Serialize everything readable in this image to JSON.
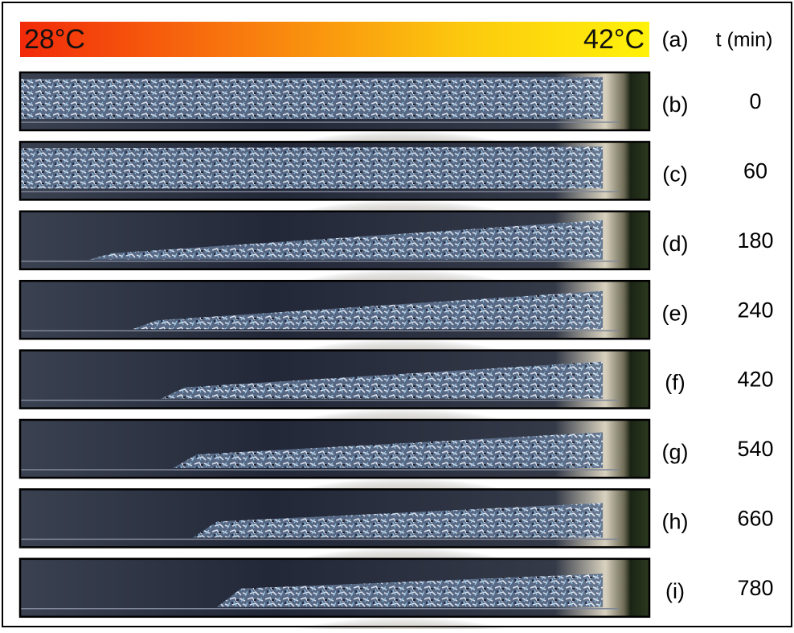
{
  "header": {
    "cold": "28°C",
    "hot": "42°C",
    "label": "(a)",
    "time_heading": "t (min)"
  },
  "panels": [
    {
      "label": "(b)",
      "time": 0
    },
    {
      "label": "(c)",
      "time": 60
    },
    {
      "label": "(d)",
      "time": 180
    },
    {
      "label": "(e)",
      "time": 240
    },
    {
      "label": "(f)",
      "time": 420
    },
    {
      "label": "(g)",
      "time": 540
    },
    {
      "label": "(h)",
      "time": 660
    },
    {
      "label": "(i)",
      "time": 780
    }
  ]
}
